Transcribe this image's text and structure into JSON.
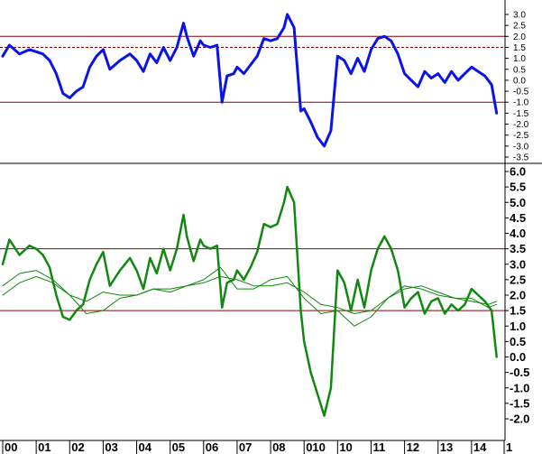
{
  "colors": {
    "top_series": "#0a14e6",
    "bottom_series": "#118811",
    "ref_line": "#8b0000",
    "frame": "#000000"
  },
  "chart_data": [
    {
      "type": "line",
      "panel": "top",
      "ylim": [
        -3.5,
        3.5
      ],
      "y_ticks": [
        "3.0",
        "2.5",
        "2.0",
        "1.5",
        "1.0",
        "0.5",
        "0.0",
        "-0.5",
        "-1.0",
        "-1.5",
        "-2.0",
        "-2.5",
        "-3.0",
        "-3.5"
      ],
      "reference_lines": [
        {
          "y": 2.0,
          "style": "solid"
        },
        {
          "y": 1.5,
          "style": "dashed"
        },
        {
          "y": -1.0,
          "style": "solid"
        }
      ],
      "series": [
        {
          "x": [
            2000.0,
            2000.2,
            2000.5,
            2000.8,
            2001.0,
            2001.2,
            2001.4,
            2001.6,
            2001.8,
            2002.0,
            2002.2,
            2002.4,
            2002.6,
            2002.8,
            2003.0,
            2003.2,
            2003.5,
            2003.8,
            2004.0,
            2004.2,
            2004.4,
            2004.6,
            2004.8,
            2005.0,
            2005.2,
            2005.4,
            2005.5,
            2005.7,
            2005.9,
            2006.0,
            2006.2,
            2006.4,
            2006.55,
            2006.7,
            2006.9,
            2007.0,
            2007.2,
            2007.4,
            2007.6,
            2007.8,
            2008.0,
            2008.2,
            2008.4,
            2008.5,
            2008.7,
            2008.9,
            2009.0,
            2009.2,
            2009.4,
            2009.6,
            2009.8,
            2010.0,
            2010.2,
            2010.4,
            2010.6,
            2010.8,
            2011.0,
            2011.2,
            2011.4,
            2011.6,
            2011.8,
            2012.0,
            2012.2,
            2012.4,
            2012.6,
            2012.8,
            2013.0,
            2013.2,
            2013.4,
            2013.6,
            2013.8,
            2014.0,
            2014.2,
            2014.4,
            2014.6,
            2014.75
          ],
          "values": [
            1.1,
            1.6,
            1.2,
            1.4,
            1.3,
            1.2,
            0.9,
            0.3,
            -0.6,
            -0.8,
            -0.5,
            -0.3,
            0.6,
            1.1,
            1.4,
            0.5,
            0.9,
            1.2,
            0.9,
            0.4,
            1.2,
            0.8,
            1.5,
            0.9,
            1.5,
            2.6,
            2.0,
            1.1,
            1.8,
            1.6,
            1.5,
            1.6,
            -1.0,
            0.2,
            0.3,
            0.6,
            0.3,
            0.7,
            1.1,
            1.9,
            1.8,
            1.9,
            2.4,
            3.0,
            2.4,
            -1.4,
            -1.3,
            -1.9,
            -2.6,
            -3.0,
            -2.3,
            1.1,
            0.9,
            0.3,
            1.0,
            0.4,
            1.4,
            1.9,
            2.0,
            1.8,
            1.2,
            0.3,
            0.0,
            -0.3,
            0.4,
            0.1,
            0.3,
            -0.1,
            0.4,
            0.0,
            0.3,
            0.6,
            0.4,
            0.2,
            -0.2,
            -1.5
          ]
        }
      ]
    },
    {
      "type": "line",
      "panel": "bottom",
      "ylim": [
        -2.5,
        6.5
      ],
      "y_ticks": [
        "6.0",
        "5.5",
        "5.0",
        "4.5",
        "4.0",
        "3.5",
        "3.0",
        "2.5",
        "2.0",
        "1.5",
        "1.0",
        "0.5",
        "0.0",
        "-0.5",
        "-1.0",
        "-1.5",
        "-2.0"
      ],
      "x_tick_labels": [
        "00",
        "01",
        "02",
        "03",
        "04",
        "05",
        "06",
        "07",
        "08",
        "010",
        "10",
        "11",
        "12",
        "13",
        "14",
        "1"
      ],
      "x_tick_positions": [
        2000,
        2001,
        2002,
        2003,
        2004,
        2005,
        2006,
        2007,
        2008,
        2009,
        2010,
        2011,
        2012,
        2013,
        2014,
        2015
      ],
      "reference_lines": [
        {
          "y": 3.5,
          "style": "solid"
        },
        {
          "y": 1.5,
          "style": "solid"
        }
      ],
      "series": [
        {
          "style": "thick",
          "x": [
            2000.0,
            2000.2,
            2000.5,
            2000.8,
            2001.0,
            2001.2,
            2001.4,
            2001.6,
            2001.8,
            2002.0,
            2002.2,
            2002.4,
            2002.6,
            2002.8,
            2003.0,
            2003.2,
            2003.5,
            2003.8,
            2004.0,
            2004.2,
            2004.4,
            2004.6,
            2004.8,
            2005.0,
            2005.2,
            2005.4,
            2005.5,
            2005.7,
            2005.9,
            2006.0,
            2006.2,
            2006.4,
            2006.55,
            2006.7,
            2006.9,
            2007.0,
            2007.2,
            2007.4,
            2007.6,
            2007.8,
            2008.0,
            2008.2,
            2008.4,
            2008.5,
            2008.7,
            2008.9,
            2009.0,
            2009.2,
            2009.4,
            2009.6,
            2009.8,
            2010.0,
            2010.2,
            2010.4,
            2010.6,
            2010.8,
            2011.0,
            2011.2,
            2011.4,
            2011.6,
            2011.8,
            2012.0,
            2012.2,
            2012.4,
            2012.6,
            2012.8,
            2013.0,
            2013.2,
            2013.4,
            2013.6,
            2013.8,
            2014.0,
            2014.2,
            2014.4,
            2014.6,
            2014.75
          ],
          "values": [
            3.0,
            3.8,
            3.3,
            3.6,
            3.5,
            3.3,
            2.9,
            2.0,
            1.3,
            1.2,
            1.5,
            1.7,
            2.5,
            3.0,
            3.4,
            2.3,
            2.8,
            3.2,
            2.8,
            2.2,
            3.2,
            2.7,
            3.5,
            2.8,
            3.5,
            4.6,
            3.9,
            3.1,
            3.8,
            3.6,
            3.5,
            3.6,
            1.6,
            2.4,
            2.5,
            2.8,
            2.5,
            2.9,
            3.4,
            4.3,
            4.2,
            4.3,
            5.0,
            5.5,
            5.0,
            1.5,
            0.5,
            -0.5,
            -1.2,
            -1.9,
            -1.0,
            2.8,
            2.4,
            1.5,
            2.5,
            1.6,
            2.8,
            3.5,
            3.9,
            3.5,
            2.8,
            1.6,
            1.9,
            2.1,
            1.4,
            1.8,
            1.9,
            1.4,
            1.7,
            1.5,
            1.7,
            2.2,
            2.0,
            1.8,
            1.5,
            0.0
          ]
        },
        {
          "style": "thin",
          "x": [
            2000.0,
            2000.5,
            2001.0,
            2001.5,
            2002.0,
            2002.5,
            2003.0,
            2003.5,
            2004.0,
            2004.5,
            2005.0,
            2005.5,
            2006.0,
            2006.5,
            2007.0,
            2007.5,
            2008.0,
            2008.5,
            2009.0,
            2009.5,
            2010.0,
            2010.5,
            2011.0,
            2011.5,
            2012.0,
            2012.5,
            2013.0,
            2013.5,
            2014.0,
            2014.5,
            2014.75
          ],
          "values": [
            2.3,
            2.7,
            2.8,
            2.5,
            2.0,
            1.8,
            2.1,
            2.0,
            2.0,
            2.2,
            2.2,
            2.3,
            2.4,
            2.6,
            2.5,
            2.3,
            2.3,
            2.4,
            2.1,
            1.7,
            1.6,
            1.4,
            1.5,
            1.9,
            2.3,
            2.2,
            2.0,
            1.9,
            1.8,
            1.7,
            1.8
          ]
        },
        {
          "style": "thin",
          "x": [
            2000.0,
            2000.5,
            2001.0,
            2001.5,
            2002.0,
            2002.5,
            2003.0,
            2003.5,
            2004.0,
            2004.5,
            2005.0,
            2005.5,
            2006.0,
            2006.5,
            2007.0,
            2007.5,
            2008.0,
            2008.5,
            2009.0,
            2009.5,
            2010.0,
            2010.5,
            2011.0,
            2011.5,
            2012.0,
            2012.5,
            2013.0,
            2013.5,
            2014.0,
            2014.5,
            2014.75
          ],
          "values": [
            2.0,
            2.4,
            2.6,
            2.4,
            2.0,
            1.4,
            1.5,
            1.9,
            2.0,
            2.2,
            2.1,
            2.3,
            2.5,
            2.9,
            2.2,
            2.2,
            2.5,
            2.6,
            1.9,
            1.4,
            1.5,
            1.0,
            1.3,
            1.9,
            2.2,
            2.3,
            2.1,
            1.9,
            1.9,
            1.6,
            1.7
          ]
        }
      ]
    }
  ]
}
